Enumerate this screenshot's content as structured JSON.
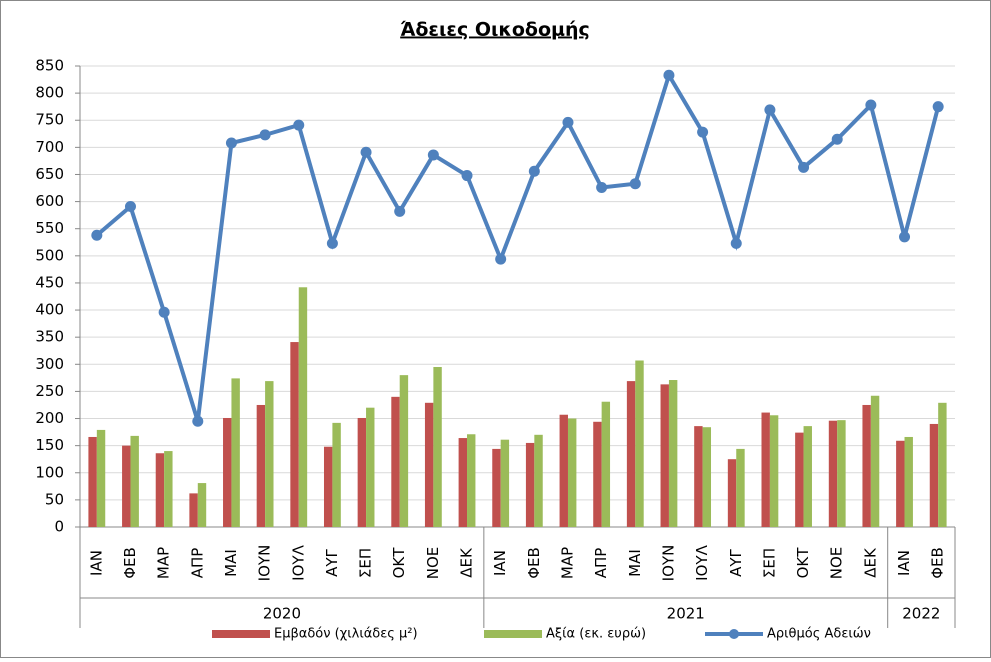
{
  "chart_data": {
    "type": "bar-line",
    "title": "Άδειες Οικοδομής",
    "groups": [
      {
        "label": "2020",
        "categories": [
          "ΙΑΝ",
          "ΦΕΒ",
          "ΜΑΡ",
          "ΑΠΡ",
          "ΜΑΙ",
          "ΙΟΥΝ",
          "ΙΟΥΛ",
          "ΑΥΓ",
          "ΣΕΠ",
          "ΟΚΤ",
          "ΝΟΕ",
          "ΔΕΚ"
        ]
      },
      {
        "label": "2021",
        "categories": [
          "ΙΑΝ",
          "ΦΕΒ",
          "ΜΑΡ",
          "ΑΠΡ",
          "ΜΑΙ",
          "ΙΟΥΝ",
          "ΙΟΥΛ",
          "ΑΥΓ",
          "ΣΕΠ",
          "ΟΚΤ",
          "ΝΟΕ",
          "ΔΕΚ"
        ]
      },
      {
        "label": "2022",
        "categories": [
          "ΙΑΝ",
          "ΦΕΒ"
        ]
      }
    ],
    "series": [
      {
        "name": "Εμβαδόν (χιλιάδες μ²)",
        "type": "bar",
        "color": "#c0504d",
        "values": [
          166,
          150,
          136,
          62,
          201,
          225,
          341,
          148,
          201,
          240,
          229,
          164,
          144,
          155,
          207,
          194,
          269,
          263,
          186,
          125,
          211,
          174,
          196,
          225,
          159,
          190
        ]
      },
      {
        "name": "Αξία (εκ. ευρώ)",
        "type": "bar",
        "color": "#9bbb59",
        "values": [
          179,
          168,
          140,
          81,
          274,
          269,
          442,
          192,
          220,
          280,
          295,
          171,
          161,
          170,
          200,
          231,
          307,
          271,
          184,
          144,
          206,
          186,
          197,
          242,
          166,
          229
        ]
      },
      {
        "name": "Αριθμός Αδειών",
        "type": "line",
        "color": "#4f81bd",
        "values": [
          538,
          591,
          396,
          195,
          708,
          723,
          741,
          523,
          691,
          582,
          686,
          648,
          494,
          656,
          746,
          626,
          633,
          833,
          728,
          523,
          769,
          663,
          715,
          778,
          535,
          775
        ]
      }
    ],
    "ylim": [
      0,
      850
    ],
    "yticks": [
      0,
      50,
      100,
      150,
      200,
      250,
      300,
      350,
      400,
      450,
      500,
      550,
      600,
      650,
      700,
      750,
      800,
      850
    ],
    "grid": true
  }
}
